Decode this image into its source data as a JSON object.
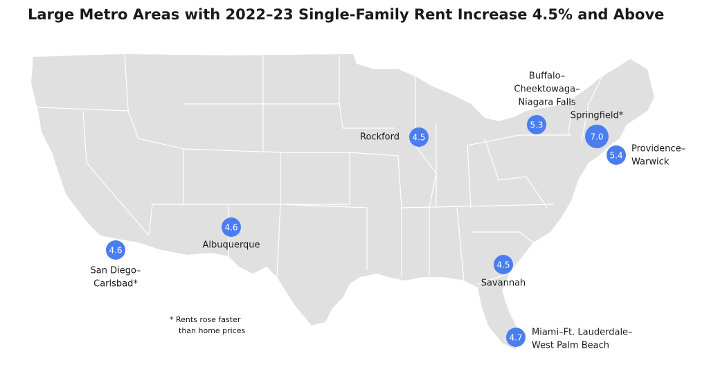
{
  "title": "Large Metro Areas with 2022–23 Single-Family Rent Increase 4.5% and Above",
  "bubble_color": "#4a7df0",
  "metros": [
    {
      "name_lines": [
        "Rockford"
      ],
      "value": 4.5
    },
    {
      "name_lines": [
        "Buffalo–",
        "Cheektowaga–",
        "Niagara Falls"
      ],
      "value": 5.3
    },
    {
      "name_lines": [
        "Springfield*"
      ],
      "value": 7.0,
      "value_label": "7.0"
    },
    {
      "name_lines": [
        "Providence–",
        "Warwick"
      ],
      "value": 5.4
    },
    {
      "name_lines": [
        "Albuquerque"
      ],
      "value": 4.6
    },
    {
      "name_lines": [
        "San Diego–",
        "Carlsbad*"
      ],
      "value": 4.6
    },
    {
      "name_lines": [
        "Savannah"
      ],
      "value": 4.5
    },
    {
      "name_lines": [
        "Miami–Ft. Lauderdale–",
        "West Palm Beach"
      ],
      "value": 4.7
    }
  ],
  "footnote": [
    "* Rents rose faster",
    "than home prices"
  ]
}
